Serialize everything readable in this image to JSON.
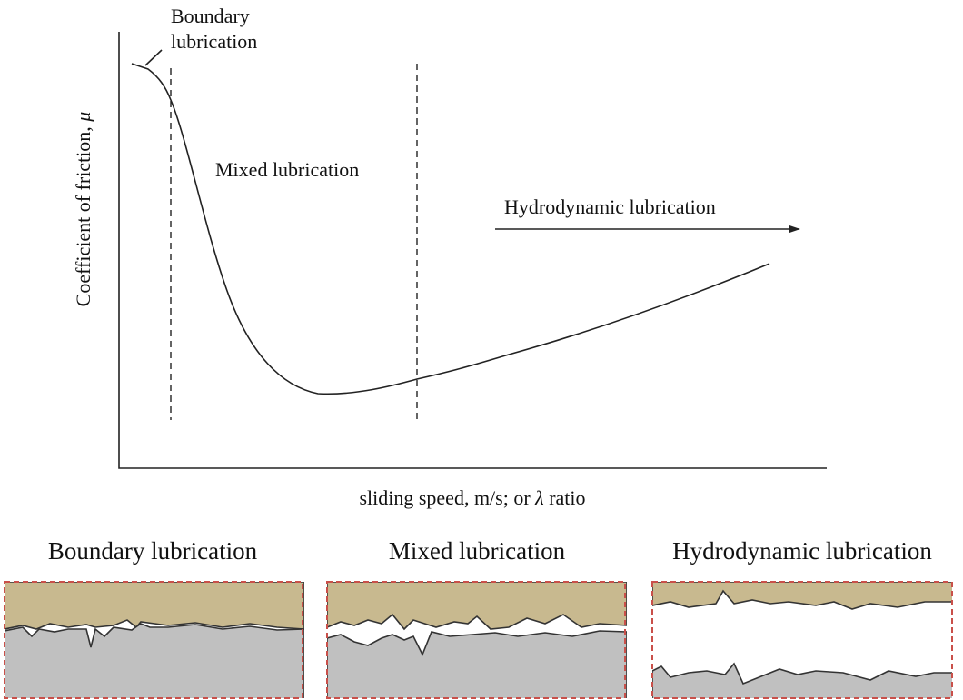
{
  "plot": {
    "y_axis_label": {
      "text": "Coefficient of friction, ",
      "symbol": "μ"
    },
    "x_axis_label": {
      "text": "sliding speed, m/s; or ",
      "symbol": "λ",
      "suffix": " ratio"
    },
    "annotations": {
      "boundary": [
        "Boundary",
        "lubrication"
      ],
      "mixed": "Mixed lubrication",
      "hydrodynamic": "Hydrodynamic lubrication"
    }
  },
  "panels": [
    {
      "title": "Boundary lubrication"
    },
    {
      "title": "Mixed lubrication"
    },
    {
      "title": "Hydrodynamic lubrication"
    }
  ]
}
